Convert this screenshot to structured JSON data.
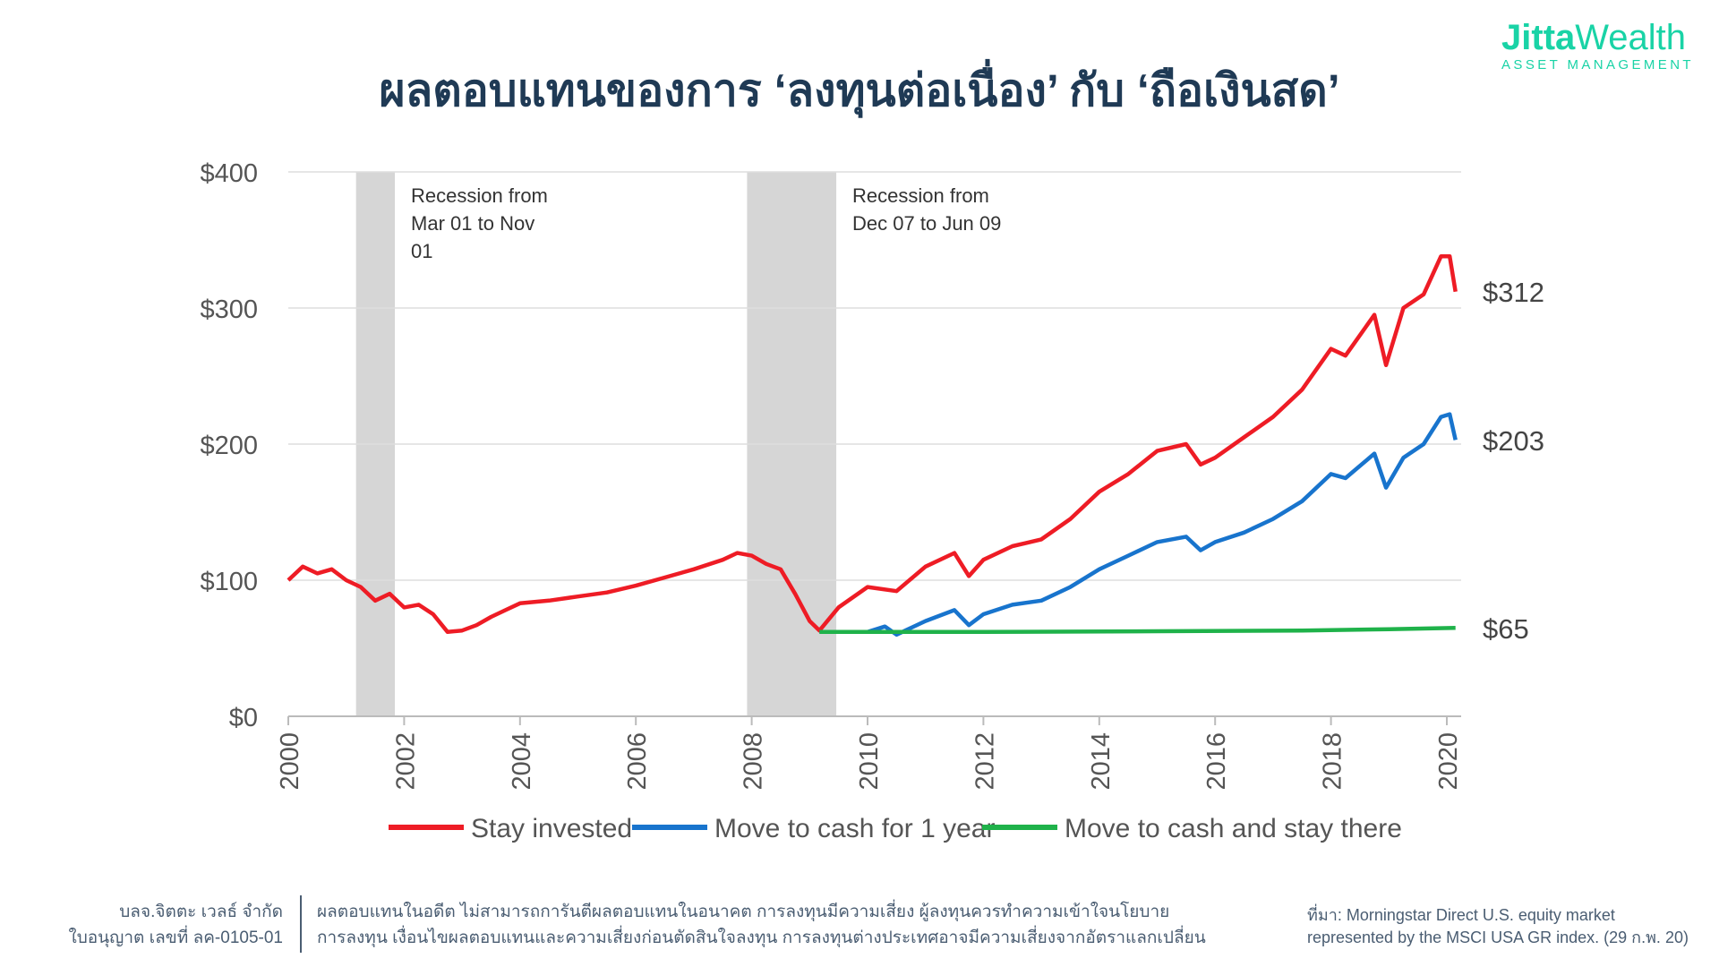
{
  "title": "ผลตอบแทนของการ ‘ลงทุนต่อเนื่อง’ กับ ‘ถือเงินสด’",
  "logo": {
    "brand_bold": "Jitta",
    "brand_light": "Wealth",
    "tagline": "ASSET MANAGEMENT",
    "color": "#19d3a6"
  },
  "chart_data": {
    "type": "line",
    "xlim": [
      2000,
      2020.2
    ],
    "ylim": [
      0,
      400
    ],
    "x_ticks": [
      "2000",
      "2002",
      "2004",
      "2006",
      "2008",
      "2010",
      "2012",
      "2014",
      "2016",
      "2018",
      "2020"
    ],
    "y_ticks": [
      "$0",
      "$100",
      "$200",
      "$300",
      "$400"
    ],
    "grid": true,
    "legend_position": "bottom",
    "recessions": [
      {
        "start": 2001.17,
        "end": 2001.84,
        "label": [
          "Recession from",
          "Mar 01 to Nov",
          "01"
        ]
      },
      {
        "start": 2007.92,
        "end": 2009.46,
        "label": [
          "Recession from",
          "Dec 07 to Jun 09"
        ]
      }
    ],
    "series": [
      {
        "name": "Stay invested",
        "color": "#ee1c25",
        "end_label": "$312",
        "x": [
          2000,
          2000.25,
          2000.5,
          2000.75,
          2001,
          2001.25,
          2001.5,
          2001.75,
          2002,
          2002.25,
          2002.5,
          2002.75,
          2003,
          2003.25,
          2003.5,
          2003.75,
          2004,
          2004.5,
          2005,
          2005.5,
          2006,
          2006.5,
          2007,
          2007.5,
          2007.75,
          2008,
          2008.25,
          2008.5,
          2008.75,
          2009,
          2009.17,
          2009.5,
          2010,
          2010.5,
          2011,
          2011.5,
          2011.75,
          2012,
          2012.5,
          2013,
          2013.5,
          2014,
          2014.5,
          2015,
          2015.5,
          2015.75,
          2016,
          2016.5,
          2017,
          2017.5,
          2018,
          2018.25,
          2018.75,
          2018.95,
          2019.25,
          2019.6,
          2019.9,
          2020.05,
          2020.15
        ],
        "y": [
          100,
          110,
          105,
          108,
          100,
          95,
          85,
          90,
          80,
          82,
          75,
          62,
          63,
          67,
          73,
          78,
          83,
          85,
          88,
          91,
          96,
          102,
          108,
          115,
          120,
          118,
          112,
          108,
          90,
          70,
          63,
          80,
          95,
          92,
          110,
          120,
          103,
          115,
          125,
          130,
          145,
          165,
          178,
          195,
          200,
          185,
          190,
          205,
          220,
          240,
          270,
          265,
          295,
          258,
          300,
          310,
          338,
          338,
          312
        ]
      },
      {
        "name": "Move to cash for 1 year",
        "color": "#1874cd",
        "end_label": "$203",
        "x": [
          2009.17,
          2010,
          2010.3,
          2010.5,
          2011,
          2011.5,
          2011.75,
          2012,
          2012.5,
          2013,
          2013.5,
          2014,
          2014.5,
          2015,
          2015.5,
          2015.75,
          2016,
          2016.5,
          2017,
          2017.5,
          2018,
          2018.25,
          2018.75,
          2018.95,
          2019.25,
          2019.6,
          2019.9,
          2020.05,
          2020.15
        ],
        "y": [
          62,
          62,
          66,
          60,
          70,
          78,
          67,
          75,
          82,
          85,
          95,
          108,
          118,
          128,
          132,
          122,
          128,
          135,
          145,
          158,
          178,
          175,
          193,
          168,
          190,
          200,
          220,
          222,
          203
        ]
      },
      {
        "name": "Move to cash and stay there",
        "color": "#1fb24a",
        "end_label": "$65",
        "x": [
          2009.17,
          2012,
          2015,
          2017.5,
          2019,
          2020.15
        ],
        "y": [
          62,
          62,
          62.5,
          63,
          64,
          65
        ]
      }
    ]
  },
  "footer": {
    "company": [
      "บลจ.จิตตะ เวลธ์ จำกัด",
      "ใบอนุญาต เลขที่ ลค-0105-01"
    ],
    "disclaimer": [
      "ผลตอบแทนในอดีต ไม่สามารถการันตีผลตอบแทนในอนาคต การลงทุนมีความเสี่ยง ผู้ลงทุนควรทำความเข้าใจนโยบาย",
      "การลงทุน เงื่อนไขผลตอบแทนและความเสี่ยงก่อนตัดสินใจลงทุน การลงทุนต่างประเทศอาจมีความเสี่ยงจากอัตราแลกเปลี่ยน"
    ],
    "source": [
      "ที่มา: Morningstar Direct U.S. equity market",
      "represented by the MSCI USA GR index. (29 ก.พ. 20)"
    ]
  }
}
